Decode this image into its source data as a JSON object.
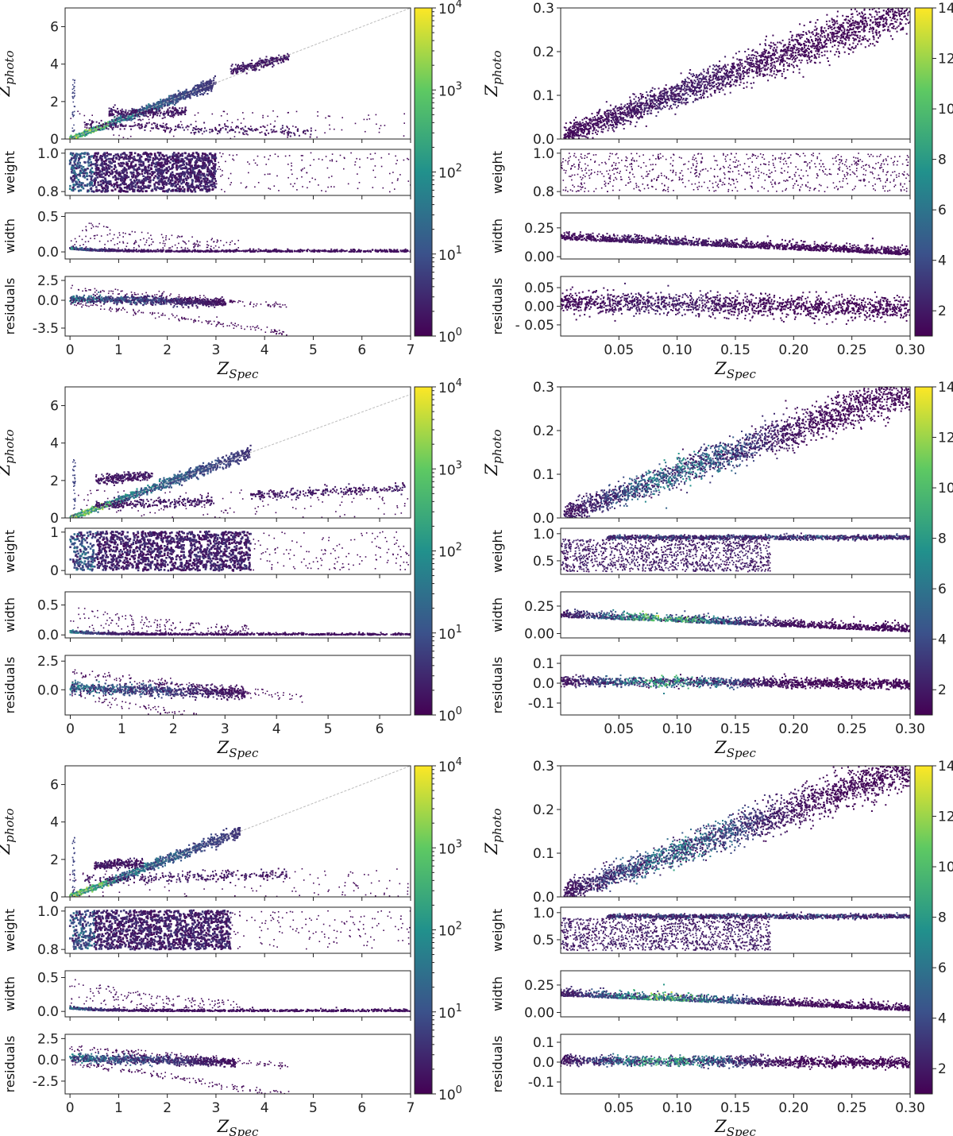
{
  "figure": {
    "x_label_main": "Z",
    "x_label_sub": "Spec",
    "y_label_main": "Z",
    "y_label_sub": "photo",
    "panel_labels": [
      "weight",
      "width",
      "residuals"
    ]
  },
  "colors": {
    "colormap": [
      "#440154",
      "#3b528b",
      "#21918c",
      "#5ec962",
      "#fde725"
    ],
    "point": "#3b0f6f",
    "identity_line": "#bbbbbb"
  },
  "chart_data": [
    {
      "type": "heatmap",
      "column": "left",
      "row": 1,
      "xlim": [
        -0.1,
        7
      ],
      "xticks": [
        "0",
        "1",
        "2",
        "3",
        "4",
        "5",
        "6",
        "7"
      ],
      "zphoto": {
        "ylim": [
          0,
          7
        ],
        "yticks": [
          "0",
          "2",
          "4",
          "6"
        ],
        "identity_line": true,
        "main_ridge_end": 3.0,
        "offbranches": [
          [
            0.8,
            2.4,
            1.4,
            1.45
          ],
          [
            0.3,
            5.0,
            0.8,
            0.3
          ],
          [
            3.3,
            4.5,
            3.6,
            4.4
          ]
        ]
      },
      "weight": {
        "ylim": [
          0.78,
          1.02
        ],
        "yticks": [
          "0.8",
          "1.0"
        ],
        "dense_until": 3.0
      },
      "width": {
        "ylim": [
          -0.1,
          0.55
        ],
        "yticks": [
          "0.0",
          "0.5"
        ]
      },
      "residuals": {
        "ylim": [
          -4.5,
          3
        ],
        "yticks": [
          "2.5",
          "0.0",
          "-3.5"
        ],
        "main_band_end": 3.2
      },
      "colorbar": {
        "type": "log",
        "ticks": [
          "10^0",
          "10^1",
          "10^2",
          "10^3",
          "10^4"
        ],
        "label_base": "10",
        "exponents": [
          "0",
          "1",
          "2",
          "3",
          "4"
        ],
        "range": [
          1,
          10000
        ]
      }
    },
    {
      "type": "heatmap",
      "column": "right",
      "row": 1,
      "xlim": [
        0,
        0.3
      ],
      "xticks": [
        "0.05",
        "0.10",
        "0.15",
        "0.20",
        "0.25",
        "0.30"
      ],
      "zphoto": {
        "ylim": [
          0,
          0.3
        ],
        "yticks": [
          "0.0",
          "0.1",
          "0.2",
          "0.3"
        ]
      },
      "weight": {
        "ylim": [
          0.78,
          1.02
        ],
        "yticks": [
          "0.8",
          "1.0"
        ]
      },
      "width": {
        "ylim": [
          -0.02,
          0.38
        ],
        "yticks": [
          "0.00",
          "0.25"
        ]
      },
      "residuals": {
        "ylim": [
          -0.08,
          0.08
        ],
        "yticks": [
          "0.05",
          "0.00",
          "- 0.05"
        ]
      },
      "colorbar": {
        "type": "linear",
        "ticks": [
          "2",
          "4",
          "6",
          "8",
          "10",
          "12",
          "14"
        ],
        "range": [
          1,
          14
        ]
      }
    },
    {
      "type": "heatmap",
      "column": "left",
      "row": 2,
      "xlim": [
        -0.1,
        6.6
      ],
      "xticks": [
        "0",
        "1",
        "2",
        "3",
        "4",
        "5",
        "6"
      ],
      "zphoto": {
        "ylim": [
          0,
          7
        ],
        "yticks": [
          "0",
          "2",
          "4",
          "6"
        ],
        "identity_line": true,
        "main_ridge_end": 3.5,
        "offbranches": [
          [
            0.5,
            1.6,
            2.0,
            2.3
          ],
          [
            0.5,
            2.8,
            0.7,
            0.9
          ],
          [
            3.5,
            6.5,
            1.2,
            1.6
          ]
        ]
      },
      "weight": {
        "ylim": [
          -0.1,
          1.1
        ],
        "yticks": [
          "0",
          "1"
        ],
        "dense_until": 3.5
      },
      "width": {
        "ylim": [
          -0.05,
          0.72
        ],
        "yticks": [
          "0.0",
          "0.5"
        ]
      },
      "residuals": {
        "ylim": [
          -2.2,
          3
        ],
        "yticks": [
          "2.5",
          "0.0"
        ],
        "main_band_end": 3.4
      },
      "colorbar": {
        "type": "log",
        "ticks": [
          "10^0",
          "10^1",
          "10^2",
          "10^3",
          "10^4"
        ],
        "label_base": "10",
        "exponents": [
          "0",
          "1",
          "2",
          "3",
          "4"
        ],
        "range": [
          1,
          10000
        ]
      }
    },
    {
      "type": "heatmap",
      "column": "right",
      "row": 2,
      "xlim": [
        0,
        0.3
      ],
      "xticks": [
        "0.05",
        "0.10",
        "0.15",
        "0.20",
        "0.25",
        "0.30"
      ],
      "zphoto": {
        "ylim": [
          0,
          0.3
        ],
        "yticks": [
          "0.0",
          "0.1",
          "0.2",
          "0.3"
        ]
      },
      "weight": {
        "ylim": [
          0.25,
          1.1
        ],
        "yticks": [
          "0.5",
          "1.0"
        ]
      },
      "width": {
        "ylim": [
          -0.04,
          0.38
        ],
        "yticks": [
          "0.00",
          "0.25"
        ]
      },
      "residuals": {
        "ylim": [
          -0.16,
          0.14
        ],
        "yticks": [
          "0.1",
          "0.0",
          "-0.1"
        ]
      },
      "colorbar": {
        "type": "linear",
        "ticks": [
          "2",
          "4",
          "6",
          "8",
          "10",
          "12",
          "14"
        ],
        "range": [
          1,
          14
        ]
      }
    },
    {
      "type": "heatmap",
      "column": "left",
      "row": 3,
      "xlim": [
        -0.1,
        7
      ],
      "xticks": [
        "0",
        "1",
        "2",
        "3",
        "4",
        "5",
        "6",
        "7"
      ],
      "zphoto": {
        "ylim": [
          0,
          7
        ],
        "yticks": [
          "0",
          "2",
          "4",
          "6"
        ],
        "identity_line": true,
        "main_ridge_end": 3.5,
        "offbranches": [
          [
            0.5,
            1.5,
            1.7,
            1.8
          ],
          [
            0.3,
            4.5,
            0.9,
            1.2
          ]
        ]
      },
      "weight": {
        "ylim": [
          0.78,
          1.02
        ],
        "yticks": [
          "0.8",
          "1.0"
        ],
        "dense_until": 3.3
      },
      "width": {
        "ylim": [
          -0.08,
          0.6
        ],
        "yticks": [
          "0.0",
          "0.5"
        ]
      },
      "residuals": {
        "ylim": [
          -4.0,
          3
        ],
        "yticks": [
          "2.5",
          "0.0",
          "-2.5"
        ],
        "main_band_end": 3.4
      },
      "colorbar": {
        "type": "log",
        "ticks": [
          "10^0",
          "10^1",
          "10^2",
          "10^3",
          "10^4"
        ],
        "label_base": "10",
        "exponents": [
          "0",
          "1",
          "2",
          "3",
          "4"
        ],
        "range": [
          1,
          10000
        ]
      }
    },
    {
      "type": "heatmap",
      "column": "right",
      "row": 3,
      "xlim": [
        0,
        0.3
      ],
      "xticks": [
        "0.05",
        "0.10",
        "0.15",
        "0.20",
        "0.25",
        "0.30"
      ],
      "zphoto": {
        "ylim": [
          0,
          0.3
        ],
        "yticks": [
          "0.0",
          "0.1",
          "0.2",
          "0.3"
        ]
      },
      "weight": {
        "ylim": [
          0.25,
          1.1
        ],
        "yticks": [
          "0.5",
          "1.0"
        ]
      },
      "width": {
        "ylim": [
          -0.04,
          0.38
        ],
        "yticks": [
          "0.00",
          "0.25"
        ]
      },
      "residuals": {
        "ylim": [
          -0.16,
          0.14
        ],
        "yticks": [
          "0.1",
          "0.0",
          "-0.1"
        ]
      },
      "colorbar": {
        "type": "linear",
        "ticks": [
          "2",
          "4",
          "6",
          "8",
          "10",
          "12",
          "14"
        ],
        "range": [
          1,
          14
        ]
      }
    }
  ]
}
